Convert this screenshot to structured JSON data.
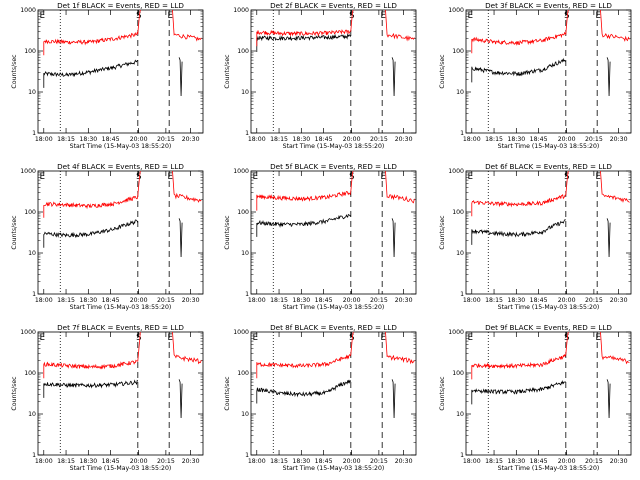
{
  "chart_data": [
    {
      "type": "line",
      "title": "Det 1f BLACK = Events, RED = LLD",
      "ylabel": "Counts/sec",
      "xlabel": "Start Time (15-May-03 18:55:20)",
      "x_tick_labels": [
        "18:00",
        "18:15",
        "18:30",
        "18:45",
        "20:00",
        "20:15",
        "20:30"
      ],
      "y_tick_labels": [
        "1",
        "10",
        "100",
        "1000"
      ],
      "yscale": "log",
      "ylim": [
        1,
        1000
      ],
      "markers": [
        "E",
        "S",
        "E"
      ],
      "series": [
        {
          "name": "BLACK = Events",
          "color": "#000000",
          "levels": [
            28,
            26,
            31,
            40,
            55
          ]
        },
        {
          "name": "RED = LLD",
          "color": "#ff0000",
          "levels": [
            175,
            165,
            165,
            200,
            255
          ]
        }
      ]
    },
    {
      "type": "line",
      "title": "Det 2f BLACK = Events, RED = LLD",
      "ylabel": "Counts/sec",
      "xlabel": "Start Time (15-May-03 18:55:20)",
      "x_tick_labels": [
        "18:00",
        "18:15",
        "18:30",
        "18:45",
        "20:00",
        "20:15",
        "20:30"
      ],
      "y_tick_labels": [
        "1",
        "10",
        "100",
        "1000"
      ],
      "yscale": "log",
      "ylim": [
        1,
        1000
      ],
      "markers": [
        "S",
        "E"
      ],
      "series": [
        {
          "name": "BLACK = Events",
          "color": "#000000",
          "levels": [
            210,
            205,
            210,
            215,
            230
          ]
        },
        {
          "name": "RED = LLD",
          "color": "#ff0000",
          "levels": [
            290,
            270,
            265,
            275,
            300
          ]
        }
      ]
    },
    {
      "type": "line",
      "title": "Det 3f BLACK = Events, RED = LLD",
      "ylabel": "Counts/sec",
      "xlabel": "Start Time (15-May-03 18:55:20)",
      "x_tick_labels": [
        "18:00",
        "18:15",
        "18:30",
        "18:45",
        "20:00",
        "20:15",
        "20:30"
      ],
      "y_tick_labels": [
        "1",
        "10",
        "100",
        "1000"
      ],
      "yscale": "log",
      "ylim": [
        1,
        1000
      ],
      "markers": [
        "E",
        "S",
        "E"
      ],
      "series": [
        {
          "name": "BLACK = Events",
          "color": "#000000",
          "levels": [
            38,
            30,
            28,
            35,
            60
          ]
        },
        {
          "name": "RED = LLD",
          "color": "#ff0000",
          "levels": [
            195,
            165,
            160,
            180,
            260
          ]
        }
      ]
    },
    {
      "type": "line",
      "title": "Det 4f BLACK = Events, RED = LLD",
      "ylabel": "Counts/sec",
      "xlabel": "Start Time (15-May-03 18:55:20)",
      "x_tick_labels": [
        "18:00",
        "18:15",
        "18:30",
        "18:45",
        "20:00",
        "20:15",
        "20:30"
      ],
      "y_tick_labels": [
        "1",
        "10",
        "100",
        "1000"
      ],
      "yscale": "log",
      "ylim": [
        1,
        1000
      ],
      "markers": [
        "E",
        "S",
        "E"
      ],
      "series": [
        {
          "name": "BLACK = Events",
          "color": "#000000",
          "levels": [
            30,
            27,
            29,
            38,
            60
          ]
        },
        {
          "name": "RED = LLD",
          "color": "#ff0000",
          "levels": [
            160,
            150,
            140,
            160,
            230
          ]
        }
      ]
    },
    {
      "type": "line",
      "title": "Det 5f BLACK = Events, RED = LLD",
      "ylabel": "Counts/sec",
      "xlabel": "Start Time (15-May-03 18:55:20)",
      "x_tick_labels": [
        "18:00",
        "18:15",
        "18:30",
        "18:45",
        "20:00",
        "20:15",
        "20:30"
      ],
      "y_tick_labels": [
        "1",
        "10",
        "100",
        "1000"
      ],
      "yscale": "log",
      "ylim": [
        1,
        1000
      ],
      "markers": [
        "E",
        "S",
        "E"
      ],
      "series": [
        {
          "name": "BLACK = Events",
          "color": "#000000",
          "levels": [
            55,
            50,
            50,
            60,
            85
          ]
        },
        {
          "name": "RED = LLD",
          "color": "#ff0000",
          "levels": [
            240,
            220,
            210,
            230,
            300
          ]
        }
      ]
    },
    {
      "type": "line",
      "title": "Det 6f BLACK = Events, RED = LLD",
      "ylabel": "Counts/sec",
      "xlabel": "Start Time (15-May-03 18:55:20)",
      "x_tick_labels": [
        "18:00",
        "18:15",
        "18:30",
        "18:45",
        "20:00",
        "20:15",
        "20:30"
      ],
      "y_tick_labels": [
        "1",
        "10",
        "100",
        "1000"
      ],
      "yscale": "log",
      "ylim": [
        1,
        1000
      ],
      "markers": [
        "E",
        "S",
        "E"
      ],
      "series": [
        {
          "name": "BLACK = Events",
          "color": "#000000",
          "levels": [
            35,
            30,
            28,
            33,
            60
          ]
        },
        {
          "name": "RED = LLD",
          "color": "#ff0000",
          "levels": [
            175,
            160,
            155,
            165,
            250
          ]
        }
      ]
    },
    {
      "type": "line",
      "title": "Det 7f BLACK = Events, RED = LLD",
      "ylabel": "Counts/sec",
      "xlabel": "Start Time (15-May-03 18:55:20)",
      "x_tick_labels": [
        "18:00",
        "18:15",
        "18:30",
        "18:45",
        "20:00",
        "20:15",
        "20:30"
      ],
      "y_tick_labels": [
        "1",
        "10",
        "100",
        "1000"
      ],
      "yscale": "log",
      "ylim": [
        1,
        1000
      ],
      "markers": [
        "E",
        "S",
        "E"
      ],
      "series": [
        {
          "name": "BLACK = Events",
          "color": "#000000",
          "levels": [
            55,
            50,
            50,
            52,
            60
          ]
        },
        {
          "name": "RED = LLD",
          "color": "#ff0000",
          "levels": [
            165,
            150,
            140,
            150,
            190
          ]
        }
      ]
    },
    {
      "type": "line",
      "title": "Det 8f BLACK = Events, RED = LLD",
      "ylabel": "Counts/sec",
      "xlabel": "Start Time (15-May-03 18:55:20)",
      "x_tick_labels": [
        "18:00",
        "18:15",
        "18:30",
        "18:45",
        "20:00",
        "20:15",
        "20:30"
      ],
      "y_tick_labels": [
        "1",
        "10",
        "100",
        "1000"
      ],
      "yscale": "log",
      "ylim": [
        1,
        1000
      ],
      "markers": [
        "E",
        "S",
        "E"
      ],
      "series": [
        {
          "name": "BLACK = Events",
          "color": "#000000",
          "levels": [
            40,
            32,
            30,
            33,
            65
          ]
        },
        {
          "name": "RED = LLD",
          "color": "#ff0000",
          "levels": [
            165,
            155,
            150,
            165,
            260
          ]
        }
      ]
    },
    {
      "type": "line",
      "title": "Det 9f BLACK = Events, RED = LLD",
      "ylabel": "Counts/sec",
      "xlabel": "Start Time (15-May-03 18:55:20)",
      "x_tick_labels": [
        "18:00",
        "18:15",
        "18:30",
        "18:45",
        "20:00",
        "20:15",
        "20:30"
      ],
      "y_tick_labels": [
        "1",
        "10",
        "100",
        "1000"
      ],
      "yscale": "log",
      "ylim": [
        1,
        1000
      ],
      "markers": [
        "E",
        "S",
        "E"
      ],
      "series": [
        {
          "name": "BLACK = Events",
          "color": "#000000",
          "levels": [
            38,
            35,
            35,
            40,
            60
          ]
        },
        {
          "name": "RED = LLD",
          "color": "#ff0000",
          "levels": [
            155,
            150,
            150,
            160,
            260
          ]
        }
      ]
    }
  ]
}
